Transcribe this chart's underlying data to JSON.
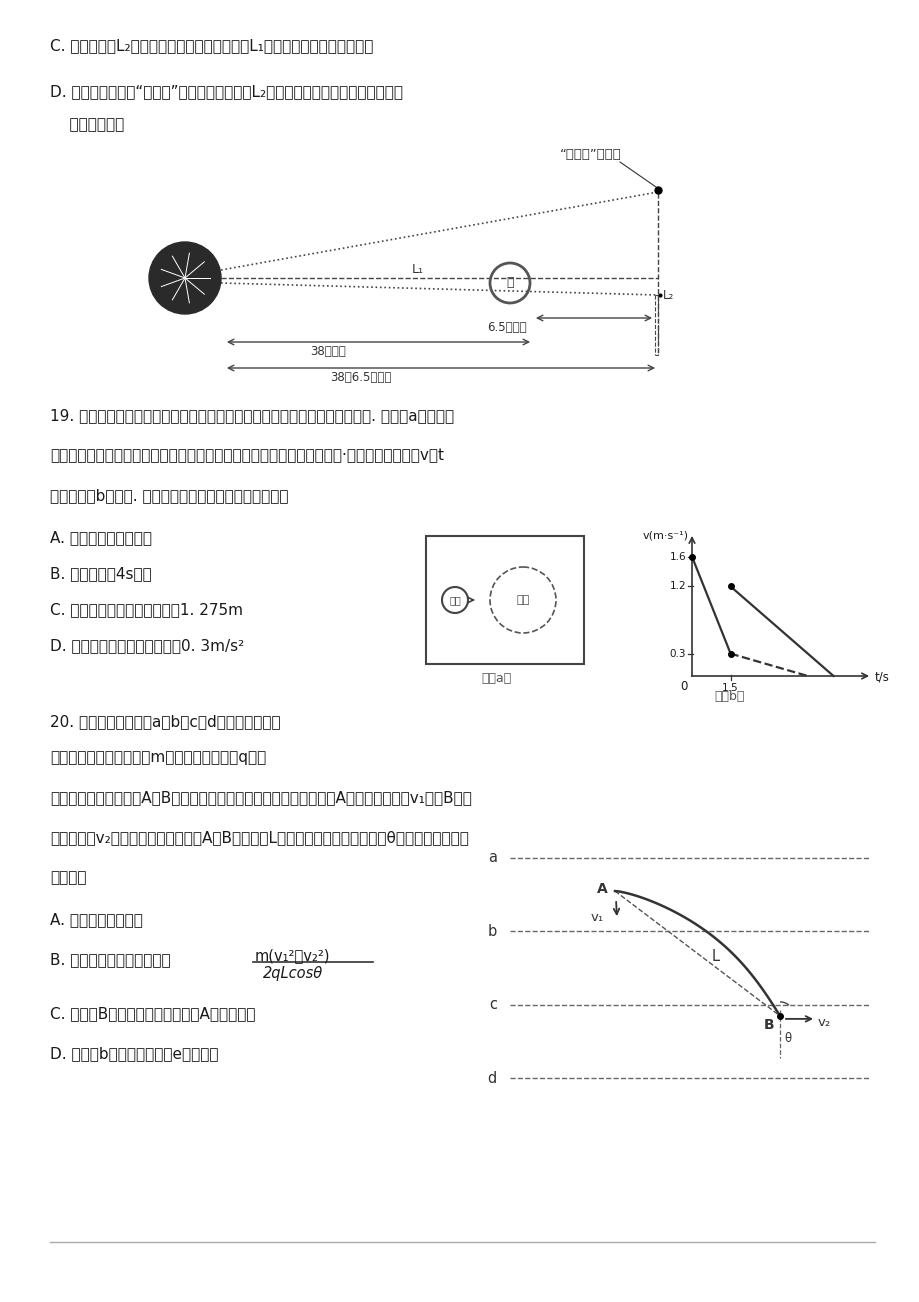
{
  "page_width": 9.2,
  "page_height": 13.02,
  "bg_color": "#ffffff",
  "text_color": "#1a1a1a",
  "line1_c": "C. 同一卫星在L₂点受地、月引力的合力与其在L₁点受地、月引力的合力相等",
  "line1_d1": "D. 若技术允许，使“鹊桥号”刚好位于拉格朗日L₂点，能够更好地为娥娥四号探测器",
  "line1_d2": "    提供通信支持",
  "question19_text1": "19. 在冰屑比赛中，球员手持毛刷擦刷冰面，可以改变冰屑滑行时受到的阻力. 如图（a）所示，",
  "question19_text2": "蓝屑静止在圆形区域内，运动员用等质量的红屑撞击蓝屑，两屑发生正碍·若碍撞前后两屑的v－t",
  "question19_text3": "图像如图（b）所示. 关于冰屑的运动，下列说法正确的是",
  "q19_A": "A. 两屑发生了弹性碍撞",
  "q19_B": "B. 蓝屑运动了4s停下",
  "q19_C": "C. 撞后两屑相距的最远距离为1. 275m",
  "q19_D": "D. 碍撞后蓝屑的加速度大小为0. 3m/s²",
  "question20_text1": "20. 如图所示，水平线a、b、c、d为匀强电场中的",
  "question20_text2": "等差等势线，一个质量为m，电荷量绝对值为q的粒",
  "question20_text3": "子在匀强电场中运动，A、B为其运动轨迹上的两个点，已知该粒子在A点的速度大小为v₁，在B点的",
  "question20_text4": "速度大小为v₂，且方向与等势线平行A、B连线长为L，连线与竖直方向的夹角为θ，不计粒子受到的",
  "question20_text5": "重力，则",
  "q20_A": "A. 该粒子一定带正电",
  "q20_B_text": "B. 匀强电场的电场强度大小",
  "q20_B_numerator": "m(v₁²－v₂²)",
  "q20_B_denominator": "2qLcosθ",
  "q20_C": "C. 粒子在B点的电势能一定大于在A点的电势能",
  "q20_D": "D. 等势线b的电势比等势线e的电势高",
  "relay_label": "“鹊桥号”中继星",
  "moon_label": "月",
  "fig_a_label": "图（a）",
  "fig_b_label": "图（b）",
  "l1_label": "L₁",
  "l2_label": "L₂",
  "dist_65": "6.5万公里",
  "dist_38": "38万公里",
  "dist_385": "38＋6.5万公里",
  "blue_label": "蓝壶",
  "red_label": "红壶"
}
